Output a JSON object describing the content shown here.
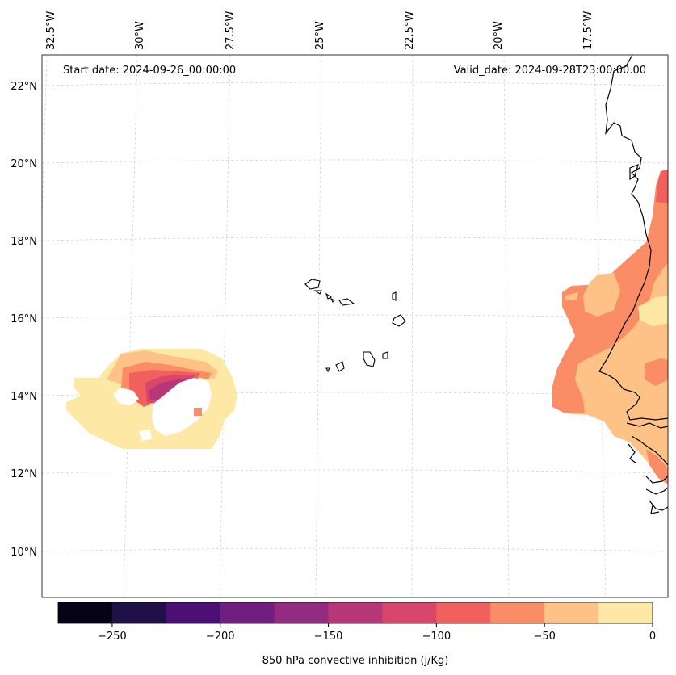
{
  "map": {
    "start_date": "Start date: 2024-09-26_00:00:00",
    "valid_date": "Valid_date: 2024-09-28T23:00:00.00",
    "lon_labels": [
      "32.5°W",
      "30°W",
      "27.5°W",
      "25°W",
      "22.5°W",
      "20°W",
      "17.5°W"
    ],
    "lat_labels": [
      "22°N",
      "20°N",
      "18°N",
      "16°N",
      "14°N",
      "12°N",
      "10°N"
    ]
  },
  "colorbar": {
    "title": "850 hPa convective inhibition (j/Kg)",
    "tick_labels": [
      "−250",
      "−200",
      "−150",
      "−100",
      "−50",
      "0"
    ],
    "ticks": [
      -250,
      -200,
      -150,
      -100,
      -50,
      0
    ],
    "range": [
      -275,
      0
    ],
    "levels": [
      -275,
      -250,
      -225,
      -200,
      -175,
      -150,
      -125,
      -100,
      -75,
      -50,
      -25,
      0
    ],
    "colors": [
      "#050416",
      "#1f1147",
      "#4b0f76",
      "#701f81",
      "#932b80",
      "#b73779",
      "#d9466b",
      "#f1605d",
      "#fb8d66",
      "#fec287",
      "#fde8a6"
    ]
  }
}
